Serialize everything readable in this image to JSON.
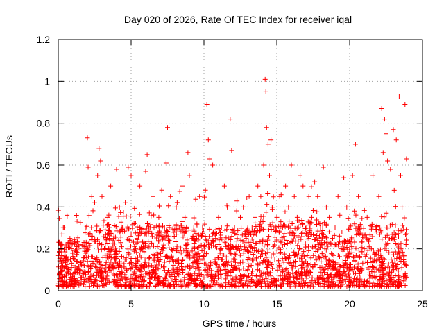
{
  "chart_data": {
    "type": "scatter",
    "title": "Day 020 of 2026, Rate Of TEC Index for receiver iqal",
    "xlabel": "GPS time / hours",
    "ylabel": "ROTI / TECUs",
    "xlim": [
      0,
      25
    ],
    "ylim": [
      0,
      1.2
    ],
    "x_ticks": [
      0,
      5,
      10,
      15,
      20,
      25
    ],
    "y_ticks": [
      0,
      0.2,
      0.4,
      0.6,
      0.8,
      1,
      1.2
    ],
    "x_tick_labels": [
      "0",
      "5",
      "10",
      "15",
      "20",
      "25"
    ],
    "y_tick_labels": [
      "0",
      "0.2",
      "0.4",
      "0.6",
      "0.8",
      "1",
      "1.2"
    ],
    "grid": true,
    "marker": "+",
    "color": "#ff0000",
    "series": [
      {
        "name": "ROTI",
        "points": [
          [
            0.1,
            0.08
          ],
          [
            0.3,
            0.12
          ],
          [
            0.5,
            0.15
          ],
          [
            0.7,
            0.1
          ],
          [
            0.9,
            0.2
          ],
          [
            0.4,
            0.3
          ],
          [
            0.6,
            0.36
          ],
          [
            0.8,
            0.25
          ],
          [
            0.2,
            0.05
          ],
          [
            1.1,
            0.06
          ],
          [
            1.3,
            0.14
          ],
          [
            1.5,
            0.22
          ],
          [
            1.7,
            0.12
          ],
          [
            1.9,
            0.3
          ],
          [
            2.0,
            0.73
          ],
          [
            2.05,
            0.59
          ],
          [
            2.3,
            0.45
          ],
          [
            2.5,
            0.42
          ],
          [
            2.7,
            0.55
          ],
          [
            2.8,
            0.68
          ],
          [
            2.9,
            0.62
          ],
          [
            3.0,
            0.45
          ],
          [
            3.2,
            0.2
          ],
          [
            3.4,
            0.35
          ],
          [
            3.6,
            0.5
          ],
          [
            3.8,
            0.25
          ],
          [
            4.0,
            0.58
          ],
          [
            4.2,
            0.4
          ],
          [
            4.4,
            0.3
          ],
          [
            4.6,
            0.42
          ],
          [
            4.8,
            0.59
          ],
          [
            5.0,
            0.55
          ],
          [
            5.2,
            0.32
          ],
          [
            5.4,
            0.25
          ],
          [
            5.6,
            0.5
          ],
          [
            5.8,
            0.2
          ],
          [
            6.0,
            0.57
          ],
          [
            6.1,
            0.65
          ],
          [
            6.3,
            0.3
          ],
          [
            6.5,
            0.45
          ],
          [
            6.7,
            0.1
          ],
          [
            6.9,
            0.35
          ],
          [
            7.1,
            0.48
          ],
          [
            7.3,
            0.3
          ],
          [
            7.5,
            0.78
          ],
          [
            7.4,
            0.61
          ],
          [
            7.7,
            0.45
          ],
          [
            7.9,
            0.2
          ],
          [
            8.1,
            0.4
          ],
          [
            8.3,
            0.3
          ],
          [
            8.5,
            0.5
          ],
          [
            8.7,
            0.35
          ],
          [
            8.9,
            0.66
          ],
          [
            9.0,
            0.55
          ],
          [
            9.3,
            0.3
          ],
          [
            9.5,
            0.25
          ],
          [
            9.7,
            0.45
          ],
          [
            9.9,
            0.3
          ],
          [
            10.1,
            0.48
          ],
          [
            10.2,
            0.89
          ],
          [
            10.3,
            0.72
          ],
          [
            10.4,
            0.63
          ],
          [
            10.6,
            0.6
          ],
          [
            10.8,
            0.25
          ],
          [
            11.0,
            0.35
          ],
          [
            11.2,
            0.3
          ],
          [
            11.4,
            0.5
          ],
          [
            11.6,
            0.4
          ],
          [
            11.8,
            0.82
          ],
          [
            11.9,
            0.67
          ],
          [
            12.1,
            0.3
          ],
          [
            12.3,
            0.2
          ],
          [
            12.5,
            0.35
          ],
          [
            12.7,
            0.4
          ],
          [
            12.9,
            0.25
          ],
          [
            13.1,
            0.45
          ],
          [
            13.3,
            0.3
          ],
          [
            13.5,
            0.35
          ],
          [
            13.7,
            0.5
          ],
          [
            13.9,
            0.45
          ],
          [
            14.1,
            0.6
          ],
          [
            14.2,
            1.01
          ],
          [
            14.25,
            0.95
          ],
          [
            14.3,
            0.78
          ],
          [
            14.4,
            0.7
          ],
          [
            14.6,
            0.72
          ],
          [
            14.5,
            0.55
          ],
          [
            14.8,
            0.3
          ],
          [
            15.0,
            0.35
          ],
          [
            15.2,
            0.45
          ],
          [
            15.4,
            0.3
          ],
          [
            15.6,
            0.5
          ],
          [
            15.8,
            0.4
          ],
          [
            16.0,
            0.6
          ],
          [
            16.2,
            0.45
          ],
          [
            16.4,
            0.35
          ],
          [
            16.6,
            0.55
          ],
          [
            16.8,
            0.5
          ],
          [
            17.0,
            0.3
          ],
          [
            17.2,
            0.45
          ],
          [
            17.4,
            0.35
          ],
          [
            17.6,
            0.52
          ],
          [
            17.8,
            0.45
          ],
          [
            18.0,
            0.3
          ],
          [
            18.2,
            0.59
          ],
          [
            18.4,
            0.4
          ],
          [
            18.6,
            0.35
          ],
          [
            18.8,
            0.25
          ],
          [
            19.0,
            0.3
          ],
          [
            19.2,
            0.45
          ],
          [
            19.4,
            0.2
          ],
          [
            19.6,
            0.54
          ],
          [
            19.8,
            0.4
          ],
          [
            20.0,
            0.3
          ],
          [
            20.2,
            0.55
          ],
          [
            20.4,
            0.7
          ],
          [
            20.6,
            0.45
          ],
          [
            20.8,
            0.3
          ],
          [
            21.0,
            0.2
          ],
          [
            21.2,
            0.35
          ],
          [
            21.4,
            0.25
          ],
          [
            21.6,
            0.55
          ],
          [
            21.8,
            0.3
          ],
          [
            22.0,
            0.45
          ],
          [
            22.2,
            0.87
          ],
          [
            22.4,
            0.82
          ],
          [
            22.3,
            0.66
          ],
          [
            22.5,
            0.75
          ],
          [
            22.6,
            0.62
          ],
          [
            22.8,
            0.58
          ],
          [
            23.0,
            0.77
          ],
          [
            23.2,
            0.72
          ],
          [
            23.4,
            0.93
          ],
          [
            23.5,
            0.55
          ],
          [
            23.6,
            0.4
          ],
          [
            23.8,
            0.89
          ],
          [
            23.9,
            0.63
          ],
          [
            23.7,
            0.3
          ]
        ]
      }
    ]
  }
}
